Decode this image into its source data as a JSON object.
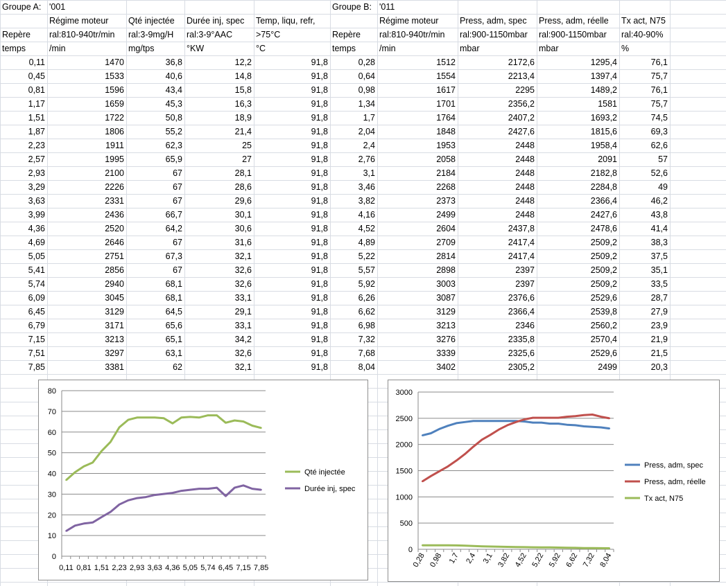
{
  "group_a": {
    "label": "Groupe A:",
    "code": "'001",
    "columns": [
      {
        "name": "",
        "spec": "Repère",
        "unit": "temps"
      },
      {
        "name": "Régime moteur",
        "spec": "ral:810-940tr/min",
        "unit": "/min"
      },
      {
        "name": "Qté injectée",
        "spec": "ral:3-9mg/H",
        "unit": "mg/tps"
      },
      {
        "name": "Durée inj, spec",
        "spec": "ral:3-9°AAC",
        "unit": "°KW"
      },
      {
        "name": "Temp, liqu, refr,",
        "spec": ">75°C",
        "unit": "°C"
      }
    ],
    "rows": [
      [
        "0,11",
        "1470",
        "36,8",
        "12,2",
        "91,8"
      ],
      [
        "0,45",
        "1533",
        "40,6",
        "14,8",
        "91,8"
      ],
      [
        "0,81",
        "1596",
        "43,4",
        "15,8",
        "91,8"
      ],
      [
        "1,17",
        "1659",
        "45,3",
        "16,3",
        "91,8"
      ],
      [
        "1,51",
        "1722",
        "50,8",
        "18,9",
        "91,8"
      ],
      [
        "1,87",
        "1806",
        "55,2",
        "21,4",
        "91,8"
      ],
      [
        "2,23",
        "1911",
        "62,3",
        "25",
        "91,8"
      ],
      [
        "2,57",
        "1995",
        "65,9",
        "27",
        "91,8"
      ],
      [
        "2,93",
        "2100",
        "67",
        "28,1",
        "91,8"
      ],
      [
        "3,29",
        "2226",
        "67",
        "28,6",
        "91,8"
      ],
      [
        "3,63",
        "2331",
        "67",
        "29,6",
        "91,8"
      ],
      [
        "3,99",
        "2436",
        "66,7",
        "30,1",
        "91,8"
      ],
      [
        "4,36",
        "2520",
        "64,2",
        "30,6",
        "91,8"
      ],
      [
        "4,69",
        "2646",
        "67",
        "31,6",
        "91,8"
      ],
      [
        "5,05",
        "2751",
        "67,3",
        "32,1",
        "91,8"
      ],
      [
        "5,41",
        "2856",
        "67",
        "32,6",
        "91,8"
      ],
      [
        "5,74",
        "2940",
        "68,1",
        "32,6",
        "91,8"
      ],
      [
        "6,09",
        "3045",
        "68,1",
        "33,1",
        "91,8"
      ],
      [
        "6,45",
        "3129",
        "64,5",
        "29,1",
        "91,8"
      ],
      [
        "6,79",
        "3171",
        "65,6",
        "33,1",
        "91,8"
      ],
      [
        "7,15",
        "3213",
        "65,1",
        "34,2",
        "91,8"
      ],
      [
        "7,51",
        "3297",
        "63,1",
        "32,6",
        "91,8"
      ],
      [
        "7,85",
        "3381",
        "62",
        "32,1",
        "91,8"
      ]
    ]
  },
  "group_b": {
    "label": "Groupe B:",
    "code": "'011",
    "columns": [
      {
        "name": "",
        "spec": "Repère",
        "unit": "temps"
      },
      {
        "name": "Régime moteur",
        "spec": "ral:810-940tr/min",
        "unit": "/min"
      },
      {
        "name": "Press, adm, spec",
        "spec": "ral:900-1150mbar",
        "unit": "mbar"
      },
      {
        "name": "Press, adm, réelle",
        "spec": "ral:900-1150mbar",
        "unit": "mbar"
      },
      {
        "name": "Tx act, N75",
        "spec": "ral:40-90%",
        "unit": "%"
      }
    ],
    "rows": [
      [
        "0,28",
        "1512",
        "2172,6",
        "1295,4",
        "76,1"
      ],
      [
        "0,64",
        "1554",
        "2213,4",
        "1397,4",
        "75,7"
      ],
      [
        "0,98",
        "1617",
        "2295",
        "1489,2",
        "76,1"
      ],
      [
        "1,34",
        "1701",
        "2356,2",
        "1581",
        "75,7"
      ],
      [
        "1,7",
        "1764",
        "2407,2",
        "1693,2",
        "74,5"
      ],
      [
        "2,04",
        "1848",
        "2427,6",
        "1815,6",
        "69,3"
      ],
      [
        "2,4",
        "1953",
        "2448",
        "1958,4",
        "62,6"
      ],
      [
        "2,76",
        "2058",
        "2448",
        "2091",
        "57"
      ],
      [
        "3,1",
        "2184",
        "2448",
        "2182,8",
        "52,6"
      ],
      [
        "3,46",
        "2268",
        "2448",
        "2284,8",
        "49"
      ],
      [
        "3,82",
        "2373",
        "2448",
        "2366,4",
        "46,2"
      ],
      [
        "4,16",
        "2499",
        "2448",
        "2427,6",
        "43,8"
      ],
      [
        "4,52",
        "2604",
        "2437,8",
        "2478,6",
        "41,4"
      ],
      [
        "4,89",
        "2709",
        "2417,4",
        "2509,2",
        "38,3"
      ],
      [
        "5,22",
        "2814",
        "2417,4",
        "2509,2",
        "37,5"
      ],
      [
        "5,57",
        "2898",
        "2397",
        "2509,2",
        "35,1"
      ],
      [
        "5,92",
        "3003",
        "2397",
        "2509,2",
        "33,5"
      ],
      [
        "6,26",
        "3087",
        "2376,6",
        "2529,6",
        "28,7"
      ],
      [
        "6,62",
        "3129",
        "2366,4",
        "2539,8",
        "27,9"
      ],
      [
        "6,98",
        "3213",
        "2346",
        "2560,2",
        "23,9"
      ],
      [
        "7,32",
        "3276",
        "2335,8",
        "2570,4",
        "21,9"
      ],
      [
        "7,68",
        "3339",
        "2325,6",
        "2529,6",
        "21,5"
      ],
      [
        "8,04",
        "3402",
        "2305,2",
        "2499",
        "20,3"
      ]
    ]
  },
  "chart_data": [
    {
      "type": "line",
      "title": "",
      "x": [
        "0,11",
        "0,45",
        "0,81",
        "1,17",
        "1,51",
        "1,87",
        "2,23",
        "2,57",
        "2,93",
        "3,29",
        "3,63",
        "3,99",
        "4,36",
        "4,69",
        "5,05",
        "5,41",
        "5,74",
        "6,09",
        "6,45",
        "6,79",
        "7,15",
        "7,51",
        "7,85"
      ],
      "x_tick_labels": [
        "0,11",
        "0,81",
        "1,51",
        "2,23",
        "2,93",
        "3,63",
        "4,36",
        "5,05",
        "5,74",
        "6,45",
        "7,15",
        "7,85"
      ],
      "ylim": [
        0,
        80
      ],
      "y_ticks": [
        0,
        10,
        20,
        30,
        40,
        50,
        60,
        70,
        80
      ],
      "grid": true,
      "legend": "right",
      "series": [
        {
          "name": "Qté injectée",
          "color": "#9bbb59",
          "values": [
            36.8,
            40.6,
            43.4,
            45.3,
            50.8,
            55.2,
            62.3,
            65.9,
            67,
            67,
            67,
            66.7,
            64.2,
            67,
            67.3,
            67,
            68.1,
            68.1,
            64.5,
            65.6,
            65.1,
            63.1,
            62
          ]
        },
        {
          "name": "Durée inj, spec",
          "color": "#8064a2",
          "values": [
            12.2,
            14.8,
            15.8,
            16.3,
            18.9,
            21.4,
            25,
            27,
            28.1,
            28.6,
            29.6,
            30.1,
            30.6,
            31.6,
            32.1,
            32.6,
            32.6,
            33.1,
            29.1,
            33.1,
            34.2,
            32.6,
            32.1
          ]
        }
      ]
    },
    {
      "type": "line",
      "title": "",
      "x": [
        "0,28",
        "0,64",
        "0,98",
        "1,34",
        "1,7",
        "2,04",
        "2,4",
        "2,76",
        "3,1",
        "3,46",
        "3,82",
        "4,16",
        "4,52",
        "4,89",
        "5,22",
        "5,57",
        "5,92",
        "6,26",
        "6,62",
        "6,98",
        "7,32",
        "7,68",
        "8,04"
      ],
      "x_tick_labels": [
        "0,28",
        "0,98",
        "1,7",
        "2,4",
        "3,1",
        "3,82",
        "4,52",
        "5,22",
        "5,92",
        "6,62",
        "7,32",
        "8,04"
      ],
      "ylim": [
        0,
        3000
      ],
      "y_ticks": [
        0,
        500,
        1000,
        1500,
        2000,
        2500,
        3000
      ],
      "grid": true,
      "legend": "right",
      "series": [
        {
          "name": "Press, adm, spec",
          "color": "#4f81bd",
          "values": [
            2172.6,
            2213.4,
            2295,
            2356.2,
            2407.2,
            2427.6,
            2448,
            2448,
            2448,
            2448,
            2448,
            2448,
            2437.8,
            2417.4,
            2417.4,
            2397,
            2397,
            2376.6,
            2366.4,
            2346,
            2335.8,
            2325.6,
            2305.2
          ]
        },
        {
          "name": "Press, adm, réelle",
          "color": "#c0504d",
          "values": [
            1295.4,
            1397.4,
            1489.2,
            1581,
            1693.2,
            1815.6,
            1958.4,
            2091,
            2182.8,
            2284.8,
            2366.4,
            2427.6,
            2478.6,
            2509.2,
            2509.2,
            2509.2,
            2509.2,
            2529.6,
            2539.8,
            2560.2,
            2570.4,
            2529.6,
            2499
          ]
        },
        {
          "name": "Tx act, N75",
          "color": "#9bbb59",
          "values": [
            76.1,
            75.7,
            76.1,
            75.7,
            74.5,
            69.3,
            62.6,
            57,
            52.6,
            49,
            46.2,
            43.8,
            41.4,
            38.3,
            37.5,
            35.1,
            33.5,
            28.7,
            27.9,
            23.9,
            21.9,
            21.5,
            20.3
          ]
        }
      ]
    }
  ]
}
